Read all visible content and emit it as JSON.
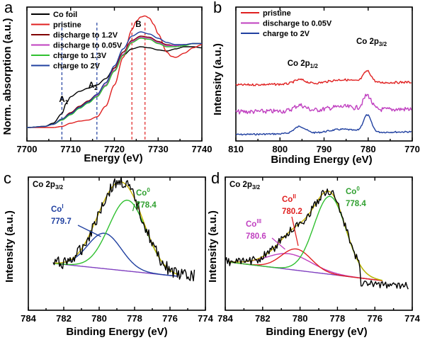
{
  "chart_data": [
    {
      "panel": "a",
      "type": "line",
      "xlabel": "Energy (eV)",
      "ylabel": "Norm. absorption (a.u.)",
      "xlim": [
        7700,
        7740
      ],
      "xticks": [
        "7700",
        "7710",
        "7720",
        "7730",
        "7740"
      ],
      "yticks_shown": false,
      "legend_position": "top-left",
      "series": [
        {
          "name": "Co foil",
          "color": "#000000",
          "x": [
            7700,
            7704,
            7706,
            7708,
            7709,
            7710,
            7712,
            7714,
            7716,
            7718,
            7720,
            7722,
            7724,
            7726,
            7728,
            7730,
            7732,
            7734,
            7736,
            7738,
            7740
          ],
          "y": [
            0.02,
            0.03,
            0.06,
            0.15,
            0.25,
            0.31,
            0.36,
            0.39,
            0.42,
            0.48,
            0.58,
            0.7,
            0.76,
            0.78,
            0.77,
            0.75,
            0.74,
            0.76,
            0.78,
            0.78,
            0.77
          ]
        },
        {
          "name": "pristine",
          "color": "#e02020",
          "x": [
            7700,
            7706,
            7708,
            7710,
            7712,
            7714,
            7716,
            7718,
            7720,
            7722,
            7724,
            7725,
            7726,
            7727,
            7728,
            7729,
            7730,
            7732,
            7733,
            7734,
            7736,
            7738,
            7740
          ],
          "y": [
            0.02,
            0.02,
            0.03,
            0.06,
            0.08,
            0.09,
            0.12,
            0.22,
            0.42,
            0.68,
            0.94,
            1.02,
            1.06,
            1.07,
            1.05,
            0.99,
            0.9,
            0.73,
            0.69,
            0.68,
            0.72,
            0.77,
            0.8
          ]
        },
        {
          "name": "discharge to 1.2V",
          "color": "#800000",
          "x": [
            7700,
            7704,
            7706,
            7708,
            7710,
            7712,
            7714,
            7716,
            7718,
            7720,
            7722,
            7724,
            7726,
            7728,
            7730,
            7732,
            7734,
            7736,
            7738,
            7740
          ],
          "y": [
            0.02,
            0.03,
            0.05,
            0.1,
            0.16,
            0.22,
            0.27,
            0.33,
            0.44,
            0.58,
            0.73,
            0.84,
            0.88,
            0.87,
            0.83,
            0.8,
            0.79,
            0.8,
            0.81,
            0.81
          ]
        },
        {
          "name": "discharge to 0.05V",
          "color": "#c040c0",
          "x": [
            7700,
            7704,
            7706,
            7708,
            7710,
            7712,
            7714,
            7716,
            7718,
            7720,
            7722,
            7724,
            7726,
            7728,
            7730,
            7732,
            7734,
            7736,
            7738,
            7740
          ],
          "y": [
            0.02,
            0.03,
            0.05,
            0.09,
            0.15,
            0.21,
            0.26,
            0.32,
            0.42,
            0.56,
            0.71,
            0.83,
            0.87,
            0.86,
            0.82,
            0.79,
            0.79,
            0.8,
            0.81,
            0.81
          ]
        },
        {
          "name": "charge to 1.3V",
          "color": "#30c030",
          "x": [
            7700,
            7704,
            7706,
            7708,
            7710,
            7712,
            7714,
            7716,
            7718,
            7720,
            7722,
            7724,
            7726,
            7728,
            7730,
            7732,
            7734,
            7736,
            7738,
            7740
          ],
          "y": [
            0.02,
            0.03,
            0.05,
            0.09,
            0.14,
            0.2,
            0.25,
            0.31,
            0.41,
            0.55,
            0.7,
            0.82,
            0.86,
            0.85,
            0.81,
            0.78,
            0.78,
            0.79,
            0.81,
            0.81
          ]
        },
        {
          "name": "charge to 2V",
          "color": "#2040a0",
          "x": [
            7700,
            7704,
            7706,
            7708,
            7710,
            7712,
            7714,
            7716,
            7718,
            7720,
            7722,
            7724,
            7726,
            7728,
            7730,
            7732,
            7734,
            7736,
            7738,
            7740
          ],
          "y": [
            0.02,
            0.03,
            0.05,
            0.1,
            0.15,
            0.21,
            0.26,
            0.33,
            0.44,
            0.6,
            0.76,
            0.88,
            0.92,
            0.9,
            0.86,
            0.82,
            0.8,
            0.8,
            0.81,
            0.81
          ]
        }
      ],
      "markers": [
        {
          "label": "A1",
          "x": 7708
        },
        {
          "label": "A2",
          "x": 7716
        },
        {
          "label": "B",
          "x": 7724
        },
        {
          "label": "B",
          "x": 7727
        }
      ]
    },
    {
      "panel": "b",
      "type": "line",
      "xlabel": "Binding Energy (eV)",
      "ylabel": "Intensity (a.u.)",
      "xlim": [
        810,
        770
      ],
      "xticks": [
        "810",
        "800",
        "790",
        "780",
        "770"
      ],
      "yticks_shown": false,
      "legend_position": "top-left",
      "series": [
        {
          "name": "pristine",
          "color": "#e02020",
          "offset": 1.4
        },
        {
          "name": "discharge to 0.05V",
          "color": "#c040c0",
          "offset": 0.6
        },
        {
          "name": "charge to 2V",
          "color": "#2040a0",
          "offset": 0.0
        }
      ],
      "peaks": [
        {
          "label": "Co 2p",
          "sub": "1/2",
          "x": 795.5
        },
        {
          "label": "Co 2p",
          "sub": "3/2",
          "x": 780.2
        }
      ]
    },
    {
      "panel": "c",
      "type": "line",
      "title": "Co 2p",
      "title_sub": "3/2",
      "xlabel": "Binding Energy (eV)",
      "ylabel": "Intensity (a.u.)",
      "xlim": [
        784,
        774
      ],
      "xticks": [
        "784",
        "782",
        "780",
        "778",
        "776",
        "774"
      ],
      "yticks_shown": false,
      "components": [
        {
          "name": "Co",
          "sup": "I",
          "value": "779.7",
          "color": "#2040a0",
          "center": 779.7
        },
        {
          "name": "Co",
          "sup": "0",
          "value": "778.4",
          "color": "#30c030",
          "center": 778.4
        }
      ],
      "fit_color": "#c8b400",
      "data_color": "#000000",
      "background_color": "#8040c0"
    },
    {
      "panel": "d",
      "type": "line",
      "title": "Co 2p",
      "title_sub": "3/2",
      "xlabel": "Binding Energy (eV)",
      "ylabel": "Intensity (a.u.)",
      "xlim": [
        784,
        774
      ],
      "xticks": [
        "784",
        "782",
        "780",
        "778",
        "776",
        "774"
      ],
      "yticks_shown": false,
      "components": [
        {
          "name": "Co",
          "sup": "III",
          "value": "780.6",
          "color": "#c040c0",
          "center": 780.6
        },
        {
          "name": "Co",
          "sup": "II",
          "value": "780.2",
          "color": "#e02020",
          "center": 780.2
        },
        {
          "name": "Co",
          "sup": "0",
          "value": "778.4",
          "color": "#30c030",
          "center": 778.4
        }
      ],
      "fit_color": "#c8b400",
      "data_color": "#000000",
      "background_color": "#8040c0"
    }
  ]
}
